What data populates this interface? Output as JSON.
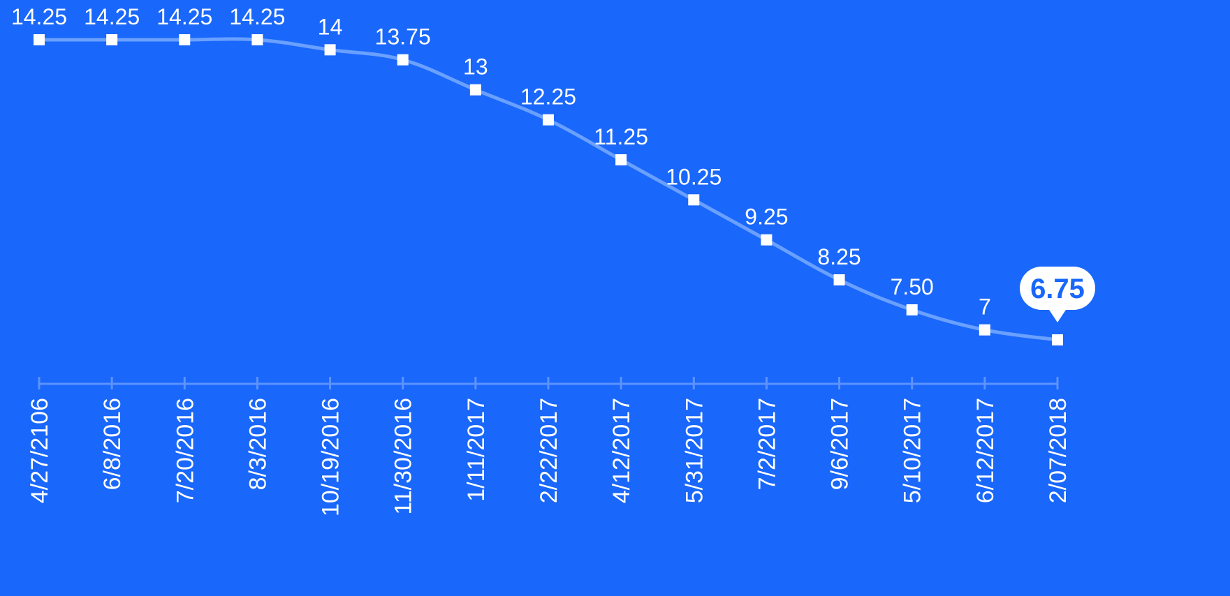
{
  "chart_data": {
    "type": "line",
    "categories": [
      "4/27/2106",
      "6/8/2016",
      "7/20/2016",
      "8/3/2016",
      "10/19/2016",
      "11/30/2016",
      "1/11/2017",
      "2/22/2017",
      "4/12/2017",
      "5/31/2017",
      "7/2/2017",
      "9/6/2017",
      "5/10/2017",
      "6/12/2017",
      "2/07/2018"
    ],
    "data_labels": [
      "14.25",
      "14.25",
      "14.25",
      "14.25",
      "14",
      "13.75",
      "13",
      "12.25",
      "11.25",
      "10.25",
      "9.25",
      "8.25",
      "7.50",
      "7",
      "6.75"
    ],
    "series": [
      {
        "values": [
          14.25,
          14.25,
          14.25,
          14.25,
          14,
          13.75,
          13,
          12.25,
          11.25,
          10.25,
          9.25,
          8.25,
          7.5,
          7,
          6.75
        ]
      }
    ],
    "highlight_index": 14,
    "ylim": [
      6.2,
      14.25
    ],
    "grid": false,
    "legend": "none",
    "colors": {
      "background": "#1967fb",
      "line": "#6aa0ff",
      "marker": "#ffffff",
      "label": "#ffffff",
      "axis": "#5d93fd",
      "callout_fill": "#ffffff",
      "callout_text": "#1967fb"
    }
  }
}
